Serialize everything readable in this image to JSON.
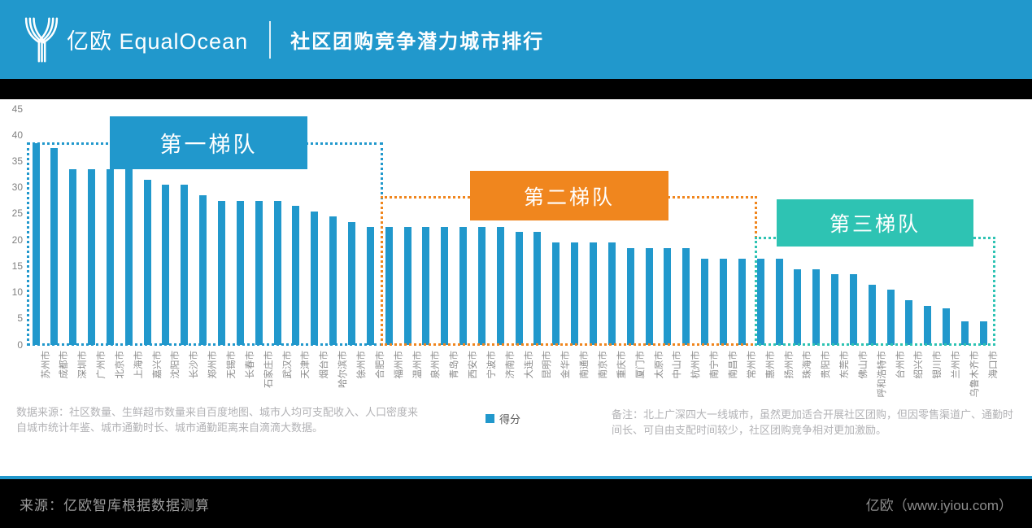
{
  "header": {
    "brand": "亿欧 EqualOcean",
    "title": "社区团购竞争潜力城市排行"
  },
  "chart_data": {
    "type": "bar",
    "title": "社区团购竞争潜力城市排行",
    "legend_label": "得分",
    "legend_position": "bottom",
    "grid": false,
    "ylim": [
      0,
      45
    ],
    "yticks": [
      0,
      5,
      10,
      15,
      20,
      25,
      30,
      35,
      40,
      45
    ],
    "bar_color": "#2198CC",
    "categories": [
      "苏州市",
      "成都市",
      "深圳市",
      "广州市",
      "北京市",
      "上海市",
      "嘉兴市",
      "沈阳市",
      "长沙市",
      "郑州市",
      "无锡市",
      "长春市",
      "石家庄市",
      "武汉市",
      "天津市",
      "烟台市",
      "哈尔滨市",
      "徐州市",
      "合肥市",
      "福州市",
      "温州市",
      "泉州市",
      "青岛市",
      "西安市",
      "宁波市",
      "济南市",
      "大连市",
      "昆明市",
      "金华市",
      "南通市",
      "南京市",
      "重庆市",
      "厦门市",
      "太原市",
      "中山市",
      "杭州市",
      "南宁市",
      "南昌市",
      "常州市",
      "惠州市",
      "扬州市",
      "珠海市",
      "贵阳市",
      "东莞市",
      "佛山市",
      "呼和浩特市",
      "台州市",
      "绍兴市",
      "银川市",
      "兰州市",
      "乌鲁木齐市",
      "海口市"
    ],
    "values": [
      38.5,
      37.5,
      33.5,
      33.5,
      33.5,
      33.5,
      31.5,
      30.5,
      30.5,
      28.5,
      27.5,
      27.5,
      27.5,
      27.5,
      26.5,
      25.5,
      24.5,
      23.5,
      22.5,
      22.5,
      22.5,
      22.5,
      22.5,
      22.5,
      22.5,
      22.5,
      21.5,
      21.5,
      19.5,
      19.5,
      19.5,
      19.5,
      18.5,
      18.5,
      18.5,
      18.5,
      16.5,
      16.5,
      16.5,
      16.5,
      16.5,
      14.5,
      14.5,
      13.5,
      13.5,
      11.5,
      10.5,
      8.5,
      7.5,
      7,
      4.5,
      4.5
    ],
    "tiers": [
      {
        "label": "第一梯队",
        "color": "#2198CC",
        "first_city": "苏州市",
        "last_city": "合肥市"
      },
      {
        "label": "第二梯队",
        "color": "#F0861E",
        "first_city": "福州市",
        "last_city": "常州市"
      },
      {
        "label": "第三梯队",
        "color": "#2EC3B3",
        "first_city": "惠州市",
        "last_city": "海口市"
      }
    ]
  },
  "footnotes": {
    "left": "数据来源：社区数量、生鲜超市数量来自百度地图、城市人均可支配收入、人口密度来自城市统计年鉴、城市通勤时长、城市通勤距离来自滴滴大数据。",
    "right": "备注：北上广深四大一线城市，虽然更加适合开展社区团购，但因零售渠道广、通勤时间长、可自由支配时间较少，社区团购竞争相对更加激励。"
  },
  "footer": {
    "source": "来源：亿欧智库根据数据测算",
    "site": "亿欧（www.iyiou.com）"
  }
}
